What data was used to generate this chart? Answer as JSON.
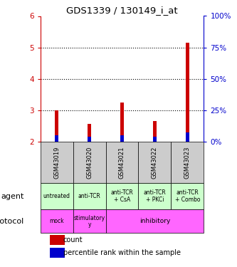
{
  "title": "GDS1339 / 130149_i_at",
  "samples": [
    "GSM43019",
    "GSM43020",
    "GSM43021",
    "GSM43022",
    "GSM43023"
  ],
  "count_values": [
    3.0,
    2.55,
    3.25,
    2.65,
    5.15
  ],
  "count_base": 2.0,
  "percentile_pct": [
    5,
    4,
    5,
    4,
    7
  ],
  "ylim_left": [
    2,
    6
  ],
  "ylim_right": [
    0,
    100
  ],
  "yticks_left": [
    2,
    3,
    4,
    5,
    6
  ],
  "yticks_right": [
    0,
    25,
    50,
    75,
    100
  ],
  "agent_labels": [
    "untreated",
    "anti-TCR",
    "anti-TCR\n+ CsA",
    "anti-TCR\n+ PKCi",
    "anti-TCR\n+ Combo"
  ],
  "agent_bg": "#ccffcc",
  "protocol_blocks": [
    {
      "start": 0,
      "end": 1,
      "label": "mock"
    },
    {
      "start": 1,
      "end": 2,
      "label": "stimulatory\ny"
    },
    {
      "start": 2,
      "end": 5,
      "label": "inhibitory"
    }
  ],
  "protocol_bg": "#ff66ff",
  "sample_bg": "#cccccc",
  "bar_color_red": "#cc0000",
  "bar_color_blue": "#0000cc",
  "legend_red": "count",
  "legend_blue": "percentile rank within the sample",
  "left_axis_color": "#cc0000",
  "right_axis_color": "#0000cc",
  "dotted_yticks": [
    3,
    4,
    5
  ],
  "n_samples": 5,
  "bar_width": 0.12
}
